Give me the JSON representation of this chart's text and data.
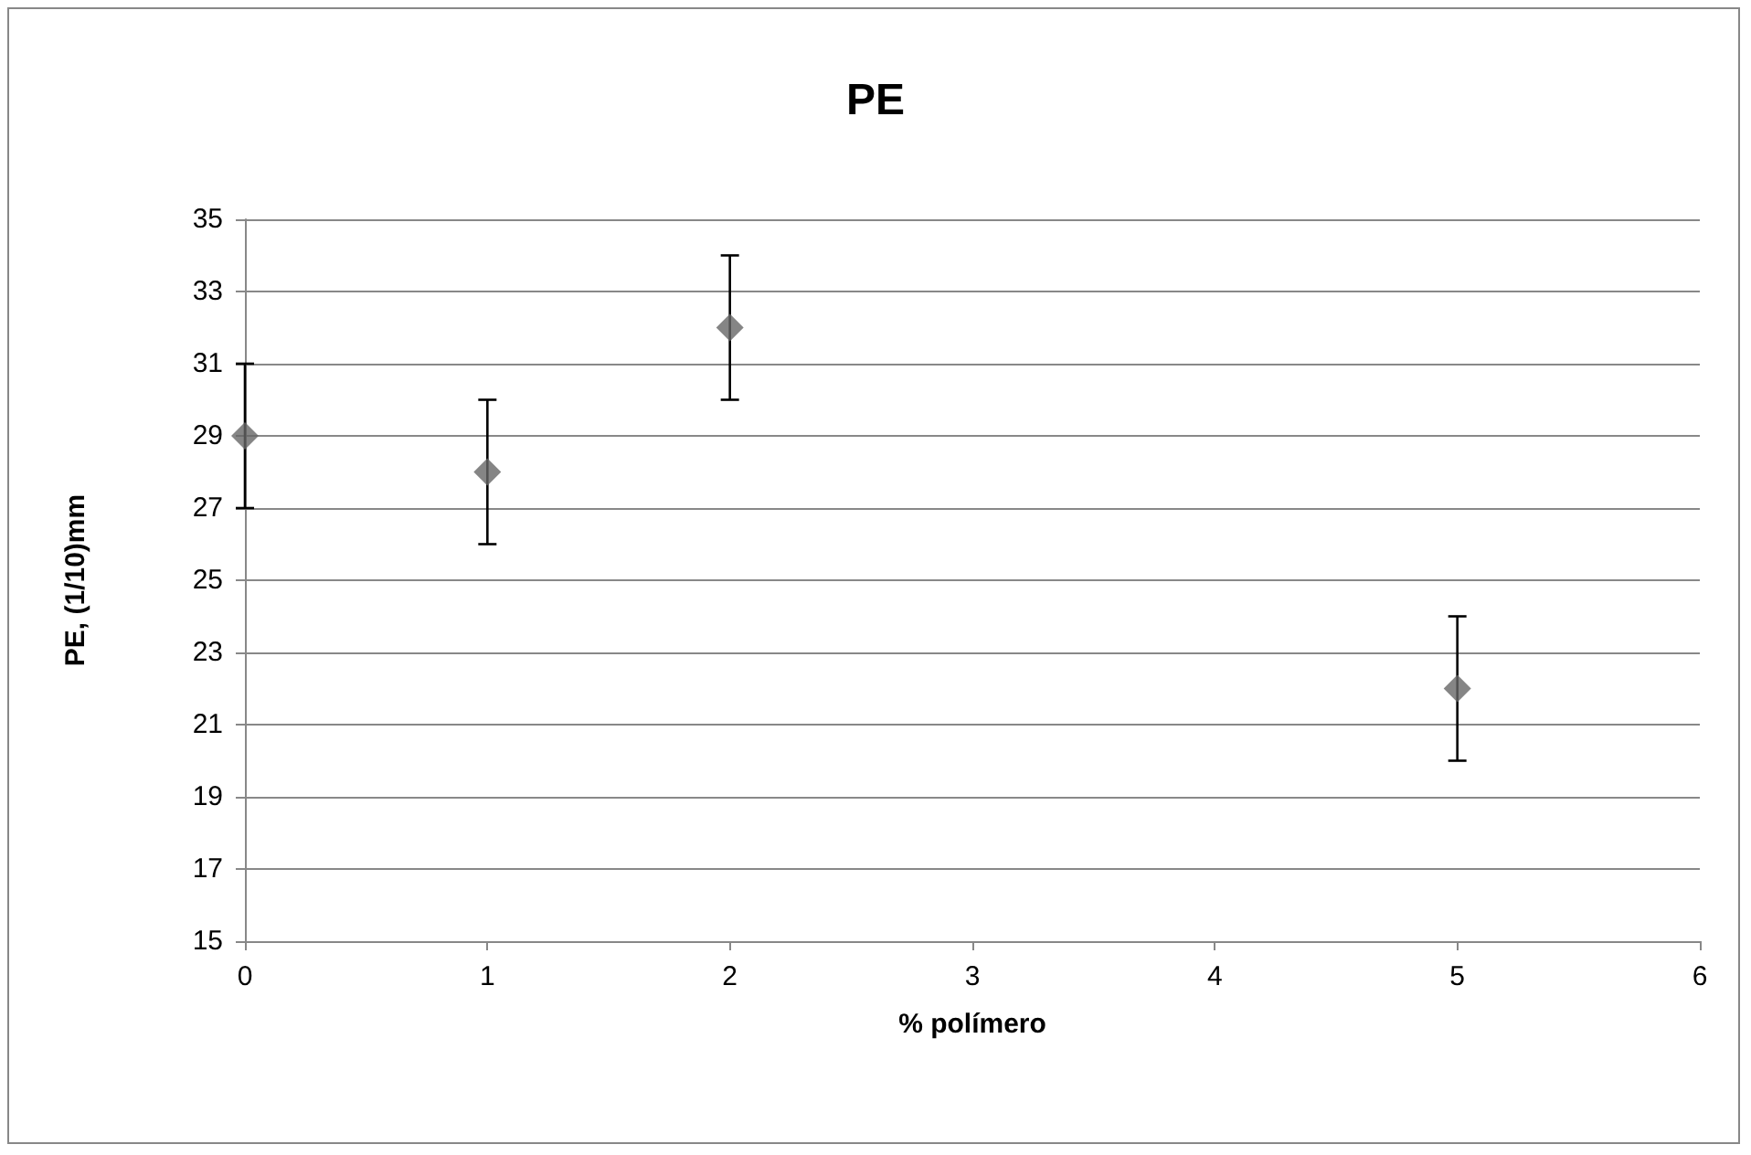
{
  "chart_data": {
    "type": "scatter",
    "title": "PE",
    "xlabel": "% polímero",
    "ylabel": "PE, (1/10)mm",
    "x": [
      0,
      1,
      2,
      5
    ],
    "values": [
      29,
      28,
      32,
      22
    ],
    "errors": [
      2,
      2,
      2,
      2
    ],
    "color": "#666666",
    "xlim": [
      0,
      6
    ],
    "xticks": [
      0,
      1,
      2,
      3,
      4,
      5,
      6
    ],
    "ylim": [
      15,
      35
    ],
    "yticks": [
      15,
      17,
      19,
      21,
      23,
      25,
      27,
      29,
      31,
      33,
      35
    ],
    "grid": "y",
    "marker": "diamond"
  }
}
